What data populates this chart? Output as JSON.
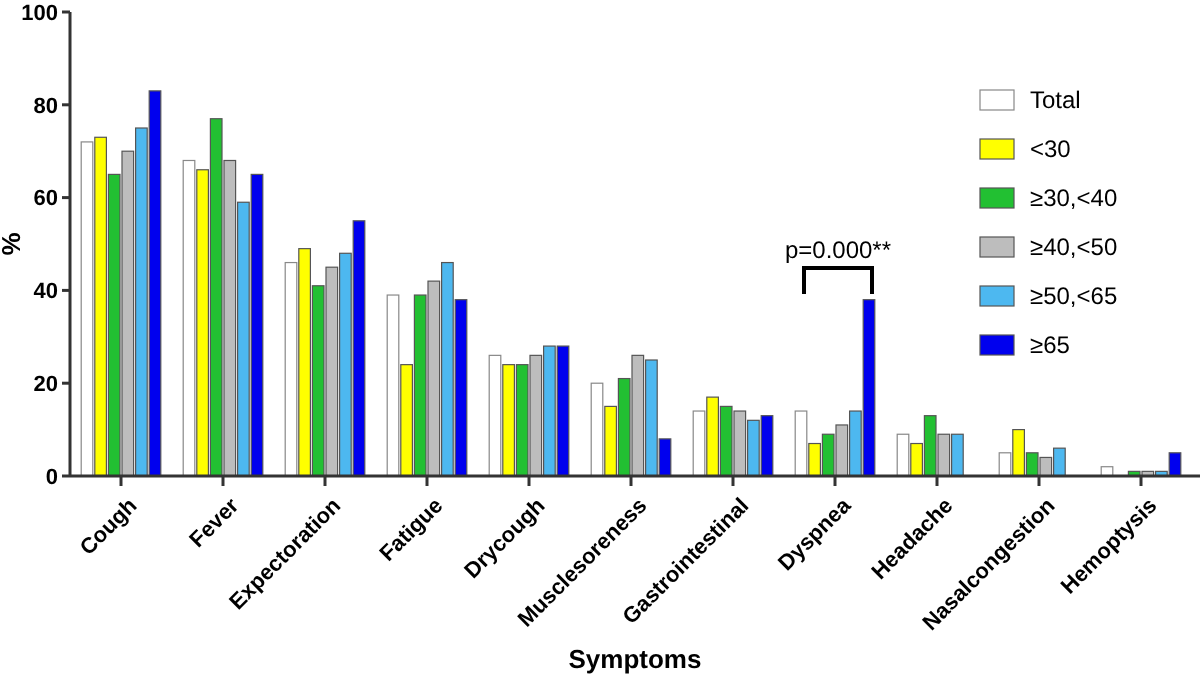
{
  "chart_data": {
    "type": "bar",
    "xlabel": "Symptoms",
    "ylabel": "%",
    "categories": [
      "Cough",
      "Fever",
      "Expectoration",
      "Fatigue",
      "Drycough",
      "Musclesoreness",
      "Gastrointestinal",
      "Dyspnea",
      "Headache",
      "Nasalcongestion",
      "Hemoptysis"
    ],
    "series": [
      {
        "name": "Total",
        "color": "#ffffff",
        "values": [
          72,
          68,
          46,
          39,
          26,
          20,
          14,
          14,
          9,
          5,
          2
        ]
      },
      {
        "name": "<30",
        "color": "#ffff00",
        "values": [
          73,
          66,
          49,
          24,
          24,
          15,
          17,
          7,
          7,
          10,
          0
        ]
      },
      {
        "name": "≥30,<40",
        "color": "#22c032",
        "values": [
          65,
          77,
          41,
          39,
          24,
          21,
          15,
          9,
          13,
          5,
          1
        ]
      },
      {
        "name": "≥40,<50",
        "color": "#bdbdbd",
        "values": [
          70,
          68,
          45,
          42,
          26,
          26,
          14,
          11,
          9,
          4,
          1
        ]
      },
      {
        "name": "≥50,<65",
        "color": "#4db8f0",
        "values": [
          75,
          59,
          48,
          46,
          28,
          25,
          12,
          14,
          9,
          6,
          1
        ]
      },
      {
        "name": "≥65",
        "color": "#0000ee",
        "values": [
          83,
          65,
          55,
          38,
          28,
          8,
          13,
          38,
          0,
          0,
          5
        ]
      }
    ],
    "ylim": [
      0,
      100
    ],
    "yticks": [
      0,
      20,
      40,
      60,
      80,
      100
    ],
    "grid": false,
    "legend": "right",
    "annotations": [
      "p=0.000**"
    ]
  }
}
